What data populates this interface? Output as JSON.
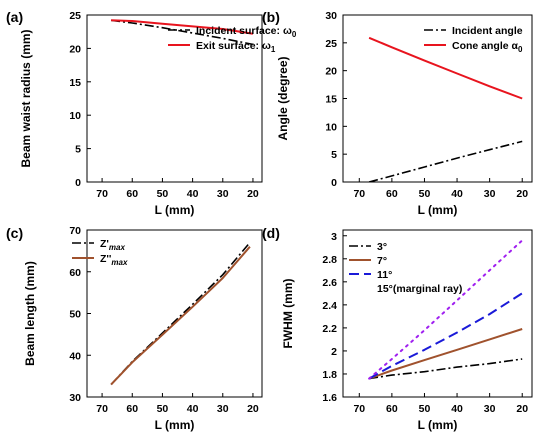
{
  "chart_data": [
    {
      "panel": "(a)",
      "type": "line",
      "xlabel": "L (mm)",
      "ylabel": "Beam waist radius (mm)",
      "xlim": [
        75,
        17
      ],
      "ylim": [
        0,
        25
      ],
      "xticks": [
        70,
        60,
        50,
        40,
        30,
        20
      ],
      "yticks": [
        0,
        5,
        10,
        15,
        20,
        25
      ],
      "legend_position": "top-right",
      "series": [
        {
          "legend_text": "Incident surface: ω",
          "legend_sub": "0",
          "color": "#000000",
          "dash": "9,3,2,3",
          "width": 1.6,
          "x": [
            67,
            60,
            50,
            40,
            30,
            20
          ],
          "y": [
            24.2,
            23.8,
            23.1,
            22.3,
            21.5,
            20.6
          ]
        },
        {
          "legend_text": "Exit surface: ω",
          "legend_sub": "1",
          "color": "#e8141e",
          "dash": "",
          "width": 2,
          "x": [
            67,
            60,
            50,
            40,
            30,
            20
          ],
          "y": [
            24.2,
            24.1,
            23.7,
            23.3,
            22.9,
            22.2
          ]
        }
      ]
    },
    {
      "panel": "(b)",
      "type": "line",
      "xlabel": "L (mm)",
      "ylabel": "Angle (degree)",
      "xlim": [
        75,
        17
      ],
      "ylim": [
        0,
        30
      ],
      "xticks": [
        70,
        60,
        50,
        40,
        30,
        20
      ],
      "yticks": [
        0,
        5,
        10,
        15,
        20,
        25,
        30
      ],
      "legend_position": "top-right",
      "series": [
        {
          "legend_text": "Incident angle",
          "legend_sub": "",
          "color": "#000000",
          "dash": "9,3,2,3",
          "width": 1.6,
          "x": [
            67,
            60,
            50,
            40,
            30,
            20
          ],
          "y": [
            0,
            1.1,
            2.7,
            4.3,
            5.8,
            7.3
          ]
        },
        {
          "legend_text": "Cone angle α",
          "legend_sub": "0",
          "color": "#e8141e",
          "dash": "",
          "width": 2,
          "x": [
            67,
            60,
            50,
            40,
            30,
            20
          ],
          "y": [
            25.9,
            24.2,
            21.8,
            19.5,
            17.2,
            15.0
          ]
        }
      ]
    },
    {
      "panel": "(c)",
      "type": "line",
      "xlabel": "L (mm)",
      "ylabel": "Beam length (mm)",
      "xlim": [
        75,
        17
      ],
      "ylim": [
        30,
        70
      ],
      "xticks": [
        70,
        60,
        50,
        40,
        30,
        20
      ],
      "yticks": [
        30,
        40,
        50,
        60,
        70
      ],
      "legend_position": "top-left",
      "series": [
        {
          "legend_text": "Z'",
          "legend_sub": "max",
          "color": "#000000",
          "dash": "9,3,2,3",
          "width": 1.6,
          "x": [
            67,
            60,
            50,
            40,
            30,
            21
          ],
          "y": [
            33,
            38.5,
            45.3,
            52.2,
            59.3,
            67.0
          ]
        },
        {
          "legend_text": "Z''",
          "legend_sub": "max",
          "color": "#a0522d",
          "dash": "",
          "width": 2,
          "x": [
            67,
            60,
            50,
            40,
            30,
            21
          ],
          "y": [
            33,
            38.3,
            44.9,
            51.6,
            58.5,
            66.0
          ]
        }
      ]
    },
    {
      "panel": "(d)",
      "type": "line",
      "xlabel": "L (mm)",
      "ylabel": "FWHM (mm)",
      "xlim": [
        75,
        17
      ],
      "ylim": [
        1.6,
        3.05
      ],
      "xticks": [
        70,
        60,
        50,
        40,
        30,
        20
      ],
      "yticks": [
        1.6,
        1.8,
        2.0,
        2.2,
        2.4,
        2.6,
        2.8,
        3.0
      ],
      "ytick_labels": [
        "1.6",
        "1.8",
        "2",
        "2.2",
        "2.4",
        "2.6",
        "2.8",
        "3"
      ],
      "legend_position": "top-left",
      "series": [
        {
          "legend_text": "3°",
          "legend_sub": "",
          "color": "#000000",
          "dash": "9,3,2,3",
          "width": 1.6,
          "x": [
            67,
            60,
            50,
            40,
            30,
            20
          ],
          "y": [
            1.76,
            1.79,
            1.82,
            1.86,
            1.89,
            1.93
          ]
        },
        {
          "legend_text": "7°",
          "legend_sub": "",
          "color": "#a0522d",
          "dash": "",
          "width": 2,
          "x": [
            67,
            60,
            50,
            40,
            30,
            20
          ],
          "y": [
            1.76,
            1.83,
            1.92,
            2.01,
            2.1,
            2.19
          ]
        },
        {
          "legend_text": "11°",
          "legend_sub": "",
          "color": "#1a1ad8",
          "dash": "10,5",
          "width": 2,
          "x": [
            67,
            60,
            50,
            40,
            30,
            20
          ],
          "y": [
            1.76,
            1.87,
            2.01,
            2.16,
            2.32,
            2.5
          ]
        },
        {
          "legend_text": "15°(marginal ray)",
          "legend_sub": "",
          "color": "#a020f0",
          "dash": "2,5",
          "width": 2,
          "x": [
            67,
            60,
            50,
            40,
            30,
            20
          ],
          "y": [
            1.76,
            1.93,
            2.18,
            2.44,
            2.7,
            2.96
          ]
        }
      ]
    }
  ]
}
